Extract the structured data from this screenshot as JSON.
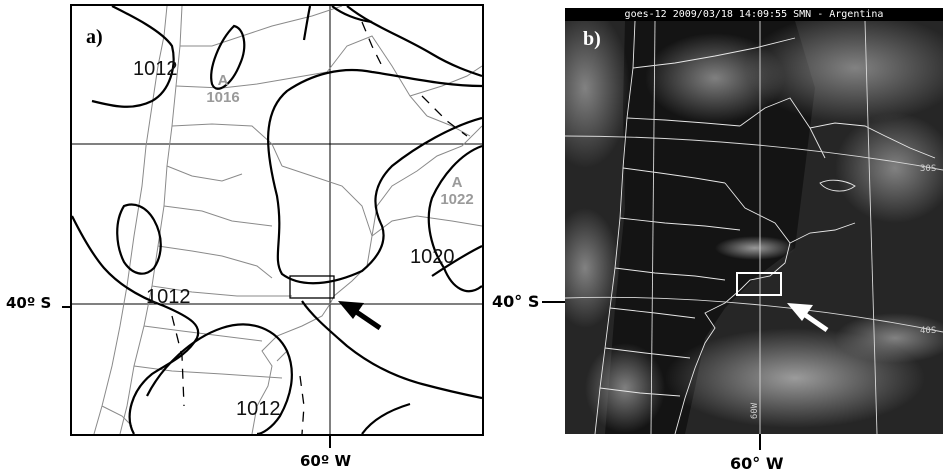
{
  "panel_a": {
    "label": "a)",
    "isobars": [
      "1012",
      "1012",
      "1012",
      "1020"
    ],
    "highs": [
      {
        "letter": "A",
        "value": "1016"
      },
      {
        "letter": "A",
        "value": "1022"
      }
    ]
  },
  "panel_b": {
    "label": "b)",
    "header": "goes-12 2009/03/18 14:09:55 SMN - Argentina",
    "grid_labels": {
      "lat_30": "30S",
      "lat_40": "40S",
      "lon_60": "60W"
    }
  },
  "axes": {
    "lat_label_a": "40º S",
    "lon_label_a": "60º W",
    "lat_label_b": "40° S",
    "lon_label_b": "60° W"
  },
  "colors": {
    "arrow_a": "#000000",
    "arrow_b": "#ffffff",
    "high_text": "#9a9a9a"
  }
}
